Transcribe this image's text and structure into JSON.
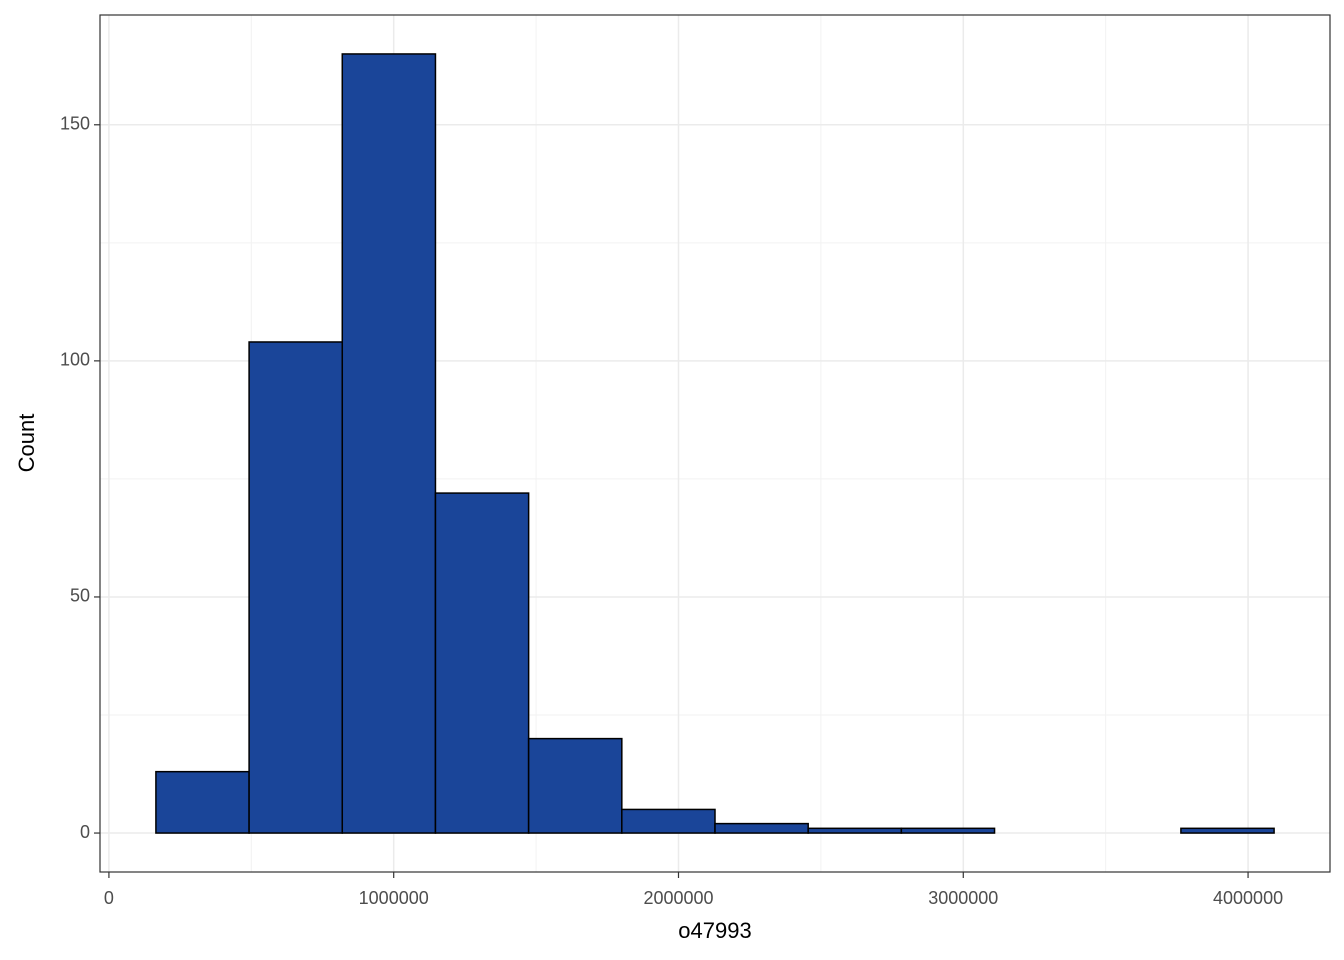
{
  "chart_data": {
    "type": "histogram",
    "x_label": "o47993",
    "y_label": "Count",
    "bins": [
      165000,
      492200,
      819400,
      1146600,
      1473800,
      1801000,
      2128200,
      2455400,
      2782600,
      3109800,
      3437000,
      3764200,
      4091400
    ],
    "counts": [
      13,
      104,
      165,
      72,
      20,
      5,
      2,
      1,
      1,
      0,
      0,
      1
    ],
    "color": "#1a4599",
    "xlim": [
      -31320,
      4287720
    ],
    "xticks": [
      0,
      1000000,
      2000000,
      3000000,
      4000000
    ],
    "xminor": [
      500000,
      1500000,
      2500000,
      3500000
    ],
    "ylim": [
      -8.25,
      173.25
    ],
    "yticks": [
      0,
      50,
      100,
      150
    ],
    "yminor": [
      25,
      75,
      125
    ],
    "grid": true
  }
}
